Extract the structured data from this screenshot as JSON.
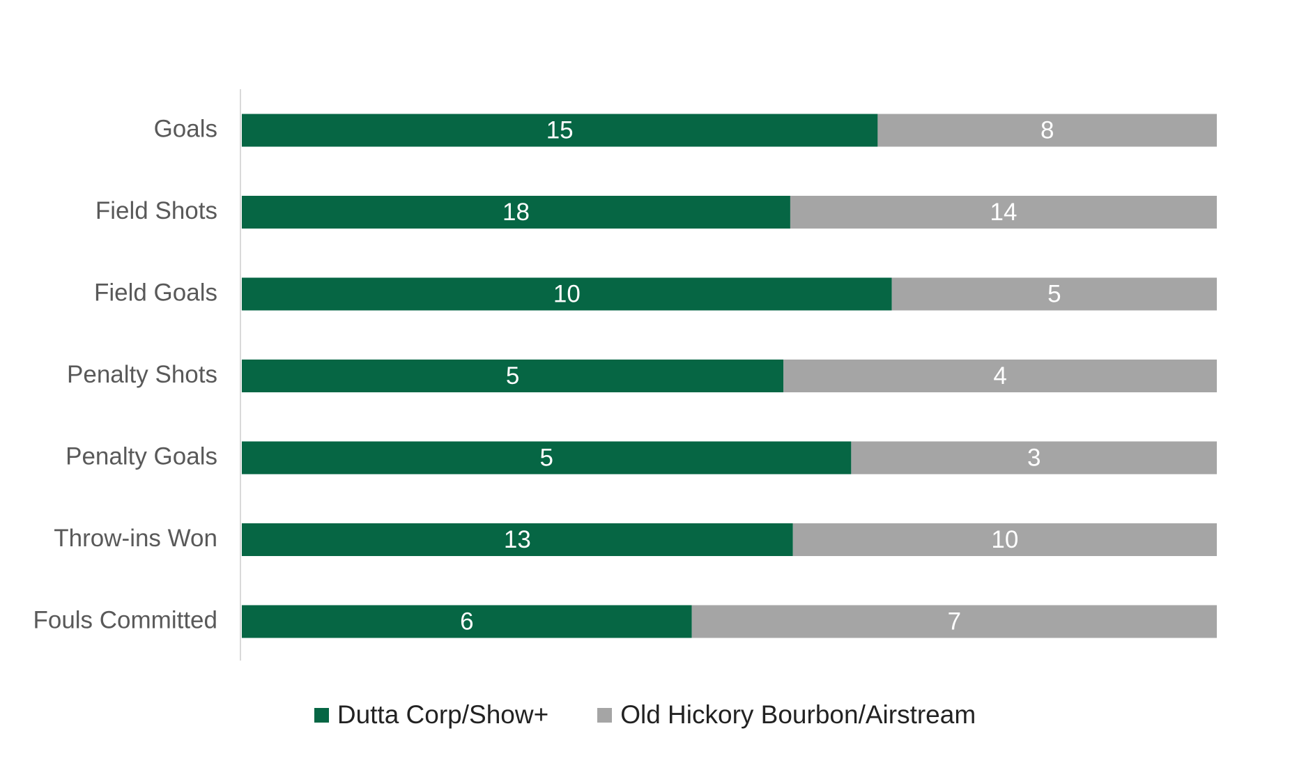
{
  "chart_data": {
    "type": "bar",
    "orientation": "horizontal",
    "stacked": "100%",
    "categories": [
      "Goals",
      "Field Shots",
      "Field Goals",
      "Penalty Shots",
      "Penalty Goals",
      "Throw-ins Won",
      "Fouls Committed"
    ],
    "series": [
      {
        "name": "Dutta Corp/Show+",
        "color": "#066644",
        "values": [
          15,
          18,
          10,
          5,
          5,
          13,
          6
        ]
      },
      {
        "name": "Old Hickory Bourbon/Airstream",
        "color": "#A5A5A5",
        "values": [
          8,
          14,
          5,
          4,
          3,
          10,
          7
        ]
      }
    ],
    "grid": false,
    "legend_position": "bottom",
    "data_labels": true
  }
}
